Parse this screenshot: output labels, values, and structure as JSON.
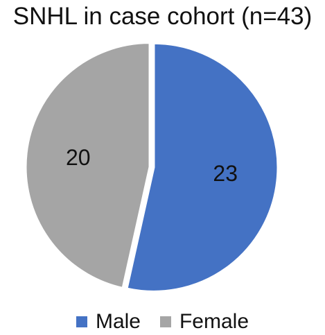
{
  "chart_data": {
    "type": "pie",
    "title": "SNHL in case cohort (n=43)",
    "categories": [
      "Male",
      "Female"
    ],
    "values": [
      23,
      20
    ],
    "colors": [
      "#4472C4",
      "#A5A5A5"
    ],
    "data_labels": [
      "23",
      "20"
    ],
    "legend": {
      "placement": "bottom",
      "entries": [
        "Male",
        "Female"
      ]
    }
  }
}
